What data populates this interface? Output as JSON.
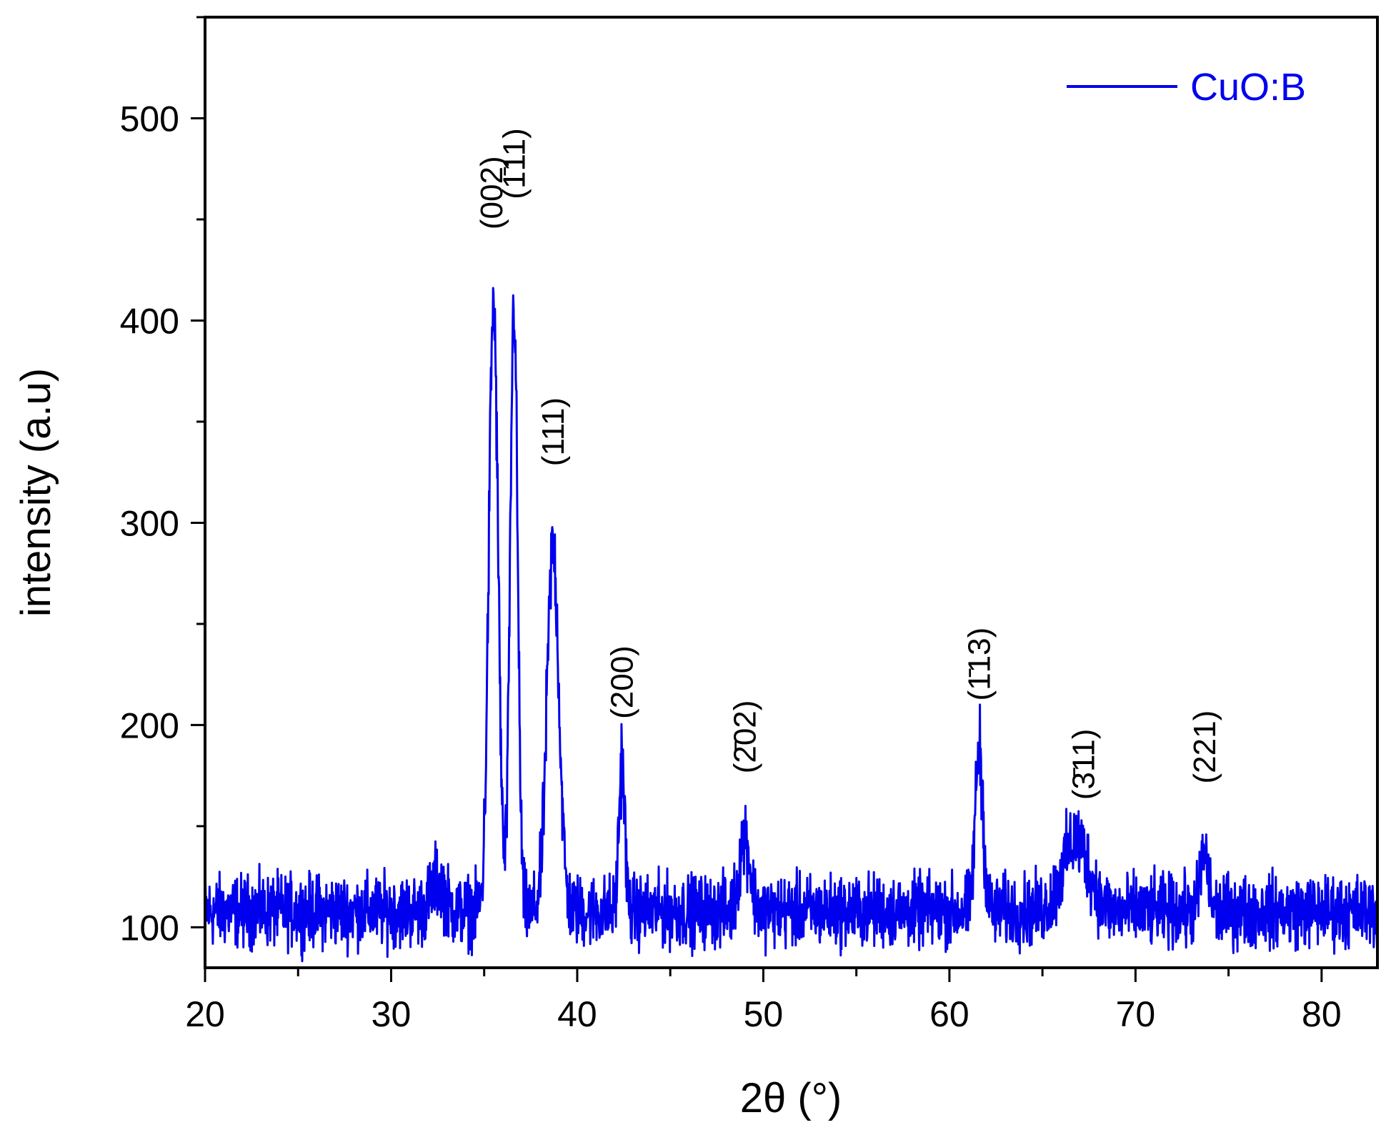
{
  "chart_data": {
    "type": "line",
    "xlabel": "2θ (°)",
    "ylabel": "intensity (a.u)",
    "xlim": [
      20,
      83
    ],
    "ylim": [
      80,
      550
    ],
    "x_ticks": [
      20,
      30,
      40,
      50,
      60,
      70,
      80
    ],
    "x_minor_step": 5,
    "y_ticks": [
      100,
      200,
      300,
      400,
      500
    ],
    "y_minor_step": 50,
    "grid": false,
    "legend_position": "top-right",
    "colors": {
      "series": "#0000ee",
      "axis": "#000000"
    },
    "series": [
      {
        "name": "CuO:B",
        "color": "#0000ee",
        "baseline": 108,
        "noise_amplitude": 22,
        "peaks": [
          {
            "x": 32.5,
            "height": 15,
            "width": 0.5
          },
          {
            "x": 35.5,
            "height": 300,
            "width": 0.35
          },
          {
            "x": 36.6,
            "height": 300,
            "width": 0.28
          },
          {
            "x": 38.7,
            "height": 180,
            "width": 0.45
          },
          {
            "x": 42.4,
            "height": 75,
            "width": 0.22
          },
          {
            "x": 49.0,
            "height": 38,
            "width": 0.4
          },
          {
            "x": 61.6,
            "height": 80,
            "width": 0.3
          },
          {
            "x": 66.8,
            "height": 35,
            "width": 1.0
          },
          {
            "x": 73.7,
            "height": 28,
            "width": 0.3
          }
        ]
      }
    ],
    "annotations": [
      {
        "label": "(002)",
        "x": 35.4,
        "y": 445
      },
      {
        "label": "(1̄11)",
        "x": 36.6,
        "y": 460
      },
      {
        "label": "(111)",
        "x": 38.7,
        "y": 328
      },
      {
        "label": "(200)",
        "x": 42.4,
        "y": 203
      },
      {
        "label": "(2̄02)",
        "x": 49.0,
        "y": 176
      },
      {
        "label": "(1̄13)",
        "x": 61.6,
        "y": 212
      },
      {
        "label": "(3̄11)",
        "x": 67.2,
        "y": 163
      },
      {
        "label": "(221)",
        "x": 73.7,
        "y": 171
      }
    ]
  }
}
